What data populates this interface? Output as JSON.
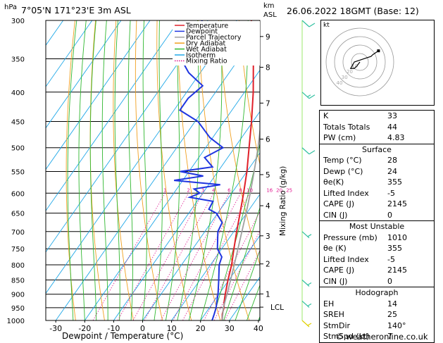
{
  "header": {
    "location": "7°05'N  171°23'E  3m  ASL",
    "datetime": "26.06.2022  18GMT  (Base: 12)",
    "hpa_label": "hPa",
    "km_label": "km",
    "asl_label": "ASL",
    "credit": "© weatheronline.co.uk"
  },
  "chart_data": {
    "type": "skew-t log-p sounding",
    "xlabel": "Dewpoint / Temperature (°C)",
    "ylabel_right": "Mixing Ratio (g/kg)",
    "pressure_ticks": [
      300,
      350,
      400,
      450,
      500,
      550,
      600,
      650,
      700,
      750,
      800,
      850,
      900,
      950,
      1000
    ],
    "temperature_ticks": [
      -30,
      -20,
      -10,
      0,
      10,
      20,
      30,
      40
    ],
    "height_ticks_km": [
      {
        "label": "9",
        "p": 320
      },
      {
        "label": "8",
        "p": 362
      },
      {
        "label": "7",
        "p": 418
      },
      {
        "label": "6",
        "p": 483
      },
      {
        "label": "5",
        "p": 557
      },
      {
        "label": "4",
        "p": 631
      },
      {
        "label": "3",
        "p": 712
      },
      {
        "label": "2",
        "p": 797
      },
      {
        "label": "1",
        "p": 899
      },
      {
        "label": "LCL",
        "p": 948
      }
    ],
    "mixing_ratio_labels": [
      "1",
      "2",
      "3",
      "4",
      "6",
      "8",
      "10",
      "16",
      "20",
      "25"
    ],
    "mixing_ratio_values": [
      1,
      2,
      3,
      4,
      6,
      8,
      10,
      16,
      20,
      25
    ],
    "legend": [
      {
        "name": "Temperature",
        "color": "#e0202a"
      },
      {
        "name": "Dewpoint",
        "color": "#1f35e0"
      },
      {
        "name": "Parcel Trajectory",
        "color": "#a0a0a0"
      },
      {
        "name": "Dry Adiabat",
        "color": "#f0a020"
      },
      {
        "name": "Wet Adiabat",
        "color": "#30b830"
      },
      {
        "name": "Isotherm",
        "color": "#20a8e8"
      },
      {
        "name": "Mixing Ratio",
        "color": "#e01890"
      }
    ],
    "series": [
      {
        "name": "Temperature",
        "color": "#e0202a",
        "points": [
          [
            1000,
            27.5
          ],
          [
            975,
            26.0
          ],
          [
            950,
            25.0
          ],
          [
            925,
            23.5
          ],
          [
            900,
            22.2
          ],
          [
            850,
            19.7
          ],
          [
            800,
            17.3
          ],
          [
            750,
            14.2
          ],
          [
            700,
            11.0
          ],
          [
            650,
            7.7
          ],
          [
            600,
            4.1
          ],
          [
            550,
            0.0
          ],
          [
            500,
            -5.0
          ],
          [
            450,
            -10.5
          ],
          [
            400,
            -17.0
          ],
          [
            350,
            -25.0
          ],
          [
            320,
            -30.8
          ],
          [
            300,
            -35.0
          ]
        ]
      },
      {
        "name": "Dewpoint",
        "color": "#1f35e0",
        "points": [
          [
            1000,
            24.0
          ],
          [
            975,
            23.2
          ],
          [
            950,
            22.3
          ],
          [
            925,
            21.0
          ],
          [
            900,
            19.7
          ],
          [
            850,
            16.5
          ],
          [
            800,
            13.0
          ],
          [
            775,
            12.0
          ],
          [
            750,
            8.5
          ],
          [
            700,
            4.5
          ],
          [
            675,
            3.8
          ],
          [
            650,
            -0.5
          ],
          [
            640,
            -4.0
          ],
          [
            620,
            -4.5
          ],
          [
            610,
            -13.5
          ],
          [
            600,
            -11.0
          ],
          [
            590,
            -14.0
          ],
          [
            580,
            -6.0
          ],
          [
            570,
            -23.0
          ],
          [
            560,
            -14.0
          ],
          [
            550,
            -23.0
          ],
          [
            540,
            -13.0
          ],
          [
            520,
            -18.0
          ],
          [
            500,
            -14.0
          ],
          [
            480,
            -21.0
          ],
          [
            450,
            -29.0
          ],
          [
            430,
            -38.0
          ],
          [
            410,
            -38.0
          ],
          [
            390,
            -36.0
          ],
          [
            370,
            -44.0
          ],
          [
            350,
            -50.0
          ],
          [
            330,
            -47.0
          ],
          [
            310,
            -51.0
          ],
          [
            300,
            -52.0
          ]
        ]
      },
      {
        "name": "Parcel Trajectory",
        "color": "#a0a0a0",
        "points": [
          [
            1000,
            27.5
          ],
          [
            950,
            24.8
          ],
          [
            900,
            22.8
          ],
          [
            850,
            20.6
          ],
          [
            800,
            18.2
          ],
          [
            750,
            15.6
          ],
          [
            700,
            12.8
          ],
          [
            650,
            9.8
          ],
          [
            600,
            6.4
          ],
          [
            550,
            2.5
          ],
          [
            500,
            -1.9
          ],
          [
            450,
            -7.2
          ],
          [
            400,
            -13.5
          ],
          [
            350,
            -21.5
          ],
          [
            300,
            -31.5
          ]
        ]
      }
    ],
    "wind_barbs": [
      {
        "p": 300,
        "kt": 10
      },
      {
        "p": 400,
        "kt": 15
      },
      {
        "p": 500,
        "kt": 10
      },
      {
        "p": 700,
        "kt": 5
      },
      {
        "p": 850,
        "kt": 5
      },
      {
        "p": 925,
        "kt": 5
      },
      {
        "p": 1000,
        "kt": 5
      }
    ]
  },
  "hodograph": {
    "unit_label": "kt",
    "ring_labels": [
      "10",
      "20",
      "30",
      "40"
    ],
    "trace_uv": [
      [
        0,
        0
      ],
      [
        -1.5,
        -2
      ],
      [
        -3,
        -3.5
      ],
      [
        -5,
        -3.5
      ],
      [
        -3,
        0
      ],
      [
        3,
        2
      ],
      [
        6,
        3
      ],
      [
        7,
        4
      ],
      [
        10,
        6
      ]
    ]
  },
  "stats": {
    "indices": [
      {
        "key": "K",
        "value": "33"
      },
      {
        "key": "Totals Totals",
        "value": "44"
      },
      {
        "key": "PW (cm)",
        "value": "4.83"
      }
    ],
    "surface": {
      "title": "Surface",
      "rows": [
        {
          "key": "Temp (°C)",
          "value": "28"
        },
        {
          "key": "Dewp (°C)",
          "value": "24"
        },
        {
          "key": "θe(K)",
          "value": "355"
        },
        {
          "key": "Lifted Index",
          "value": "-5"
        },
        {
          "key": "CAPE (J)",
          "value": "2145"
        },
        {
          "key": "CIN (J)",
          "value": "0"
        }
      ]
    },
    "most_unstable": {
      "title": "Most Unstable",
      "rows": [
        {
          "key": "Pressure (mb)",
          "value": "1010"
        },
        {
          "key": "θe (K)",
          "value": "355"
        },
        {
          "key": "Lifted Index",
          "value": "-5"
        },
        {
          "key": "CAPE (J)",
          "value": "2145"
        },
        {
          "key": "CIN (J)",
          "value": "0"
        }
      ]
    },
    "hodograph_stats": {
      "title": "Hodograph",
      "rows": [
        {
          "key": "EH",
          "value": "14"
        },
        {
          "key": "SREH",
          "value": "25"
        },
        {
          "key": "StmDir",
          "value": "140°"
        },
        {
          "key": "StmSpd (kt)",
          "value": "7"
        }
      ]
    }
  }
}
